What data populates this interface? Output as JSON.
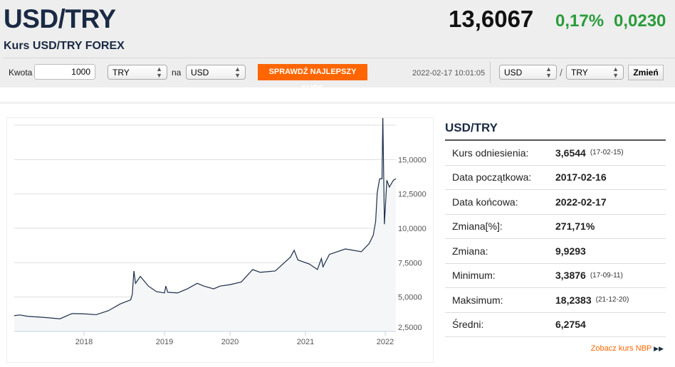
{
  "header": {
    "title": "USD/TRY",
    "subtitle": "Kurs USD/TRY FOREX",
    "rate": "13,6067",
    "change_pct": "0,17%",
    "change_abs": "0,0230"
  },
  "toolbar": {
    "amount_label": "Kwota",
    "amount_value": "1000",
    "from_currency": "TRY",
    "na_label": "na",
    "to_currency": "USD",
    "check_button": "SPRAWDŹ NAJLEPSZY KURS",
    "timestamp": "2022-02-17 10:01:05",
    "pair_base": "USD",
    "pair_slash": "/",
    "pair_quote": "TRY",
    "change_button": "Zmień"
  },
  "stats": {
    "title": "USD/TRY",
    "rows": [
      {
        "label": "Kurs odniesienia:",
        "value": "3,6544",
        "date": "(17-02-15)"
      },
      {
        "label": "Data początkowa:",
        "value": "2017-02-16",
        "date": ""
      },
      {
        "label": "Data końcowa:",
        "value": "2022-02-17",
        "date": ""
      },
      {
        "label": "Zmiana[%]:",
        "value": "271,71%",
        "date": ""
      },
      {
        "label": "Zmiana:",
        "value": "9,9293",
        "date": ""
      },
      {
        "label": "Minimum:",
        "value": "3,3876",
        "date": "(17-09-11)"
      },
      {
        "label": "Maksimum:",
        "value": "18,2383",
        "date": "(21-12-20)"
      },
      {
        "label": "Średni:",
        "value": "6,2754",
        "date": ""
      }
    ],
    "nbp_link": "Zobacz kurs NBP"
  },
  "chart_data": {
    "type": "area",
    "title": "",
    "xlabel": "",
    "ylabel": "",
    "ylim": [
      2.5,
      17.5
    ],
    "yticks": [
      2.5,
      5,
      7.5,
      10,
      12.5,
      15
    ],
    "ytick_labels": [
      "2,5000",
      "5,0000",
      "7,5000",
      "10,0000",
      "12,5000",
      "15,0000"
    ],
    "xticks": [
      2018,
      2019,
      2020,
      2021,
      2022
    ],
    "xtick_labels": [
      "2018",
      "2019",
      "2020",
      "2021",
      "2022"
    ],
    "grid": true,
    "series": [
      {
        "name": "USD/TRY",
        "color": "#1c2e4a",
        "points": [
          [
            2017.13,
            3.65
          ],
          [
            2017.2,
            3.7
          ],
          [
            2017.3,
            3.6
          ],
          [
            2017.5,
            3.52
          ],
          [
            2017.7,
            3.42
          ],
          [
            2017.85,
            3.8
          ],
          [
            2018.0,
            3.78
          ],
          [
            2018.15,
            3.72
          ],
          [
            2018.3,
            4.0
          ],
          [
            2018.45,
            4.5
          ],
          [
            2018.58,
            4.8
          ],
          [
            2018.6,
            5.2
          ],
          [
            2018.62,
            6.9
          ],
          [
            2018.64,
            6.0
          ],
          [
            2018.7,
            6.5
          ],
          [
            2018.8,
            5.8
          ],
          [
            2018.9,
            5.4
          ],
          [
            2019.0,
            5.3
          ],
          [
            2019.02,
            5.8
          ],
          [
            2019.05,
            5.35
          ],
          [
            2019.2,
            5.3
          ],
          [
            2019.35,
            5.6
          ],
          [
            2019.5,
            6.0
          ],
          [
            2019.6,
            5.8
          ],
          [
            2019.75,
            5.6
          ],
          [
            2019.85,
            5.8
          ],
          [
            2020.0,
            5.9
          ],
          [
            2020.15,
            6.1
          ],
          [
            2020.3,
            7.0
          ],
          [
            2020.4,
            6.8
          ],
          [
            2020.6,
            6.9
          ],
          [
            2020.7,
            7.4
          ],
          [
            2020.8,
            7.9
          ],
          [
            2020.85,
            8.4
          ],
          [
            2020.9,
            7.7
          ],
          [
            2021.05,
            7.4
          ],
          [
            2021.15,
            7.0
          ],
          [
            2021.2,
            7.8
          ],
          [
            2021.22,
            7.2
          ],
          [
            2021.3,
            8.1
          ],
          [
            2021.5,
            8.5
          ],
          [
            2021.7,
            8.3
          ],
          [
            2021.8,
            8.9
          ],
          [
            2021.85,
            9.5
          ],
          [
            2021.88,
            10.5
          ],
          [
            2021.9,
            12.6
          ],
          [
            2021.93,
            13.6
          ],
          [
            2021.96,
            13.6
          ],
          [
            2021.97,
            18.2
          ],
          [
            2021.99,
            10.3
          ],
          [
            2022.02,
            13.5
          ],
          [
            2022.05,
            13.0
          ],
          [
            2022.1,
            13.5
          ],
          [
            2022.13,
            13.6
          ]
        ]
      }
    ]
  }
}
